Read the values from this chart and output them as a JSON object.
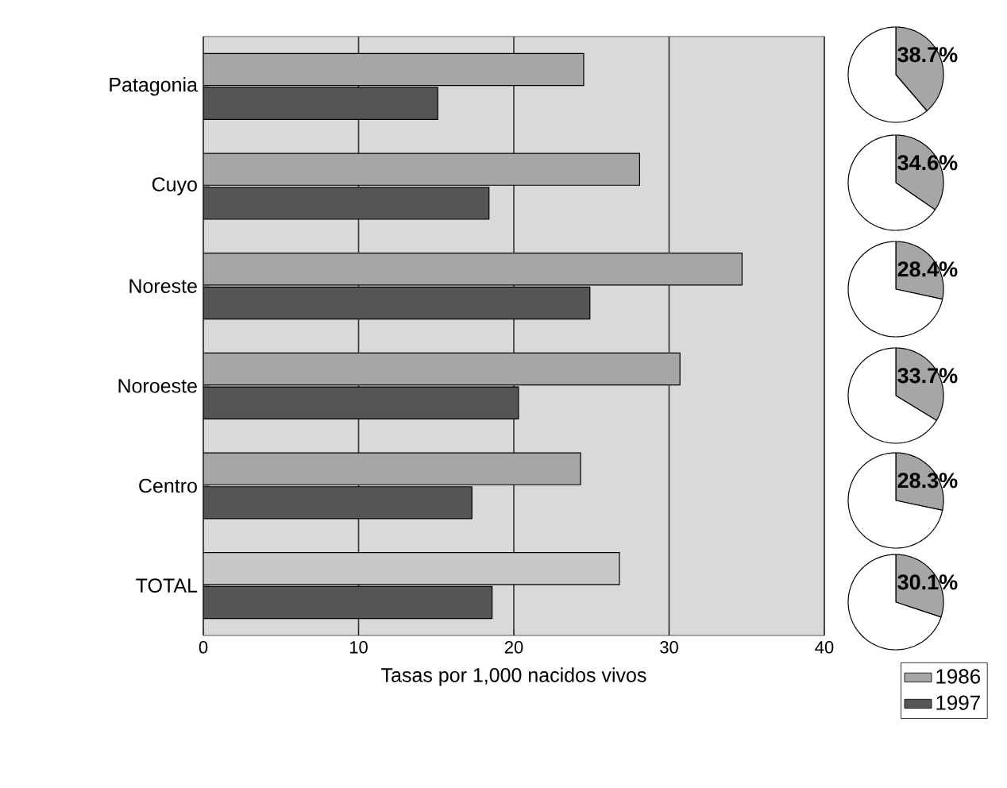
{
  "chart_data": [
    {
      "type": "bar",
      "orientation": "horizontal",
      "categories": [
        "Patagonia",
        "Cuyo",
        "Noreste",
        "Noroeste",
        "Centro",
        "TOTAL"
      ],
      "series": [
        {
          "name": "1986",
          "color": "#a6a6a6",
          "colors": [
            "#a6a6a6",
            "#a6a6a6",
            "#a6a6a6",
            "#a6a6a6",
            "#a6a6a6",
            "#c8c8c8"
          ],
          "values": [
            24.5,
            28.1,
            34.7,
            30.7,
            24.3,
            26.8
          ]
        },
        {
          "name": "1997",
          "color": "#555555",
          "values": [
            15.1,
            18.4,
            24.9,
            20.3,
            17.3,
            18.6
          ]
        }
      ],
      "xlim": [
        0,
        40
      ],
      "xticks": [
        0,
        10,
        20,
        30,
        40
      ],
      "xlabel": "Tasas por 1,000 nacidos vivos",
      "grid": "x",
      "legend": "bottom right"
    },
    {
      "type": "pie",
      "categories": [
        null,
        null
      ],
      "values": [
        38.7,
        61.3
      ],
      "colors": [
        "#a6a6a6",
        "#ffffff"
      ],
      "value_labels": [
        "38.7%",
        null
      ]
    },
    {
      "type": "pie",
      "categories": [
        null,
        null
      ],
      "values": [
        34.6,
        65.4
      ],
      "colors": [
        "#a6a6a6",
        "#ffffff"
      ],
      "value_labels": [
        "34.6%",
        null
      ]
    },
    {
      "type": "pie",
      "categories": [
        null,
        null
      ],
      "values": [
        28.4,
        71.6
      ],
      "colors": [
        "#a6a6a6",
        "#ffffff"
      ],
      "value_labels": [
        "28.4%",
        null
      ]
    },
    {
      "type": "pie",
      "categories": [
        null,
        null
      ],
      "values": [
        33.7,
        66.3
      ],
      "colors": [
        "#a6a6a6",
        "#ffffff"
      ],
      "value_labels": [
        "33.7%",
        null
      ]
    },
    {
      "type": "pie",
      "categories": [
        null,
        null
      ],
      "values": [
        28.3,
        71.7
      ],
      "colors": [
        "#a6a6a6",
        "#ffffff"
      ],
      "value_labels": [
        "28.3%",
        null
      ]
    },
    {
      "type": "pie",
      "categories": [
        null,
        null
      ],
      "values": [
        30.1,
        69.9
      ],
      "colors": [
        "#a6a6a6",
        "#ffffff"
      ],
      "value_labels": [
        "30.1%",
        null
      ]
    }
  ]
}
